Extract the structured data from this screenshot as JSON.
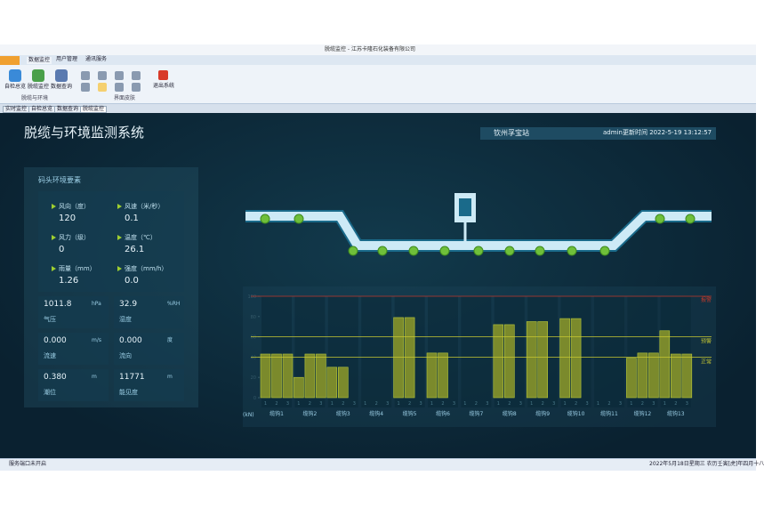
{
  "window": {
    "title": "脱缆监控 - 江苏卡隆石化装备有限公司"
  },
  "ribbon": {
    "tabs": [
      "数据监控",
      "用户管理",
      "通讯服务"
    ],
    "buttons": [
      "自检总览",
      "脱缆监控",
      "数据查询"
    ],
    "groups": [
      "脱缆与环境",
      "界面皮肤"
    ],
    "exit": "退出系统"
  },
  "doc_tabs": [
    "实时监控",
    "自检总览",
    "数据查询",
    "脱缆监控"
  ],
  "header": {
    "title": "脱缆与环境监测系统",
    "station": "钦州孚宝站",
    "user": "admin",
    "update_time": "更新时间 2022-5-19 13:12:57"
  },
  "environment": {
    "title": "码头环境要素",
    "items": [
      {
        "label": "风向（度）",
        "value": "120"
      },
      {
        "label": "风速（米/秒）",
        "value": "0.1"
      },
      {
        "label": "风力（级）",
        "value": "0"
      },
      {
        "label": "温度（℃）",
        "value": "26.1"
      },
      {
        "label": "雨量（mm）",
        "value": "1.26"
      },
      {
        "label": "强度（mm/h）",
        "value": "0.0"
      }
    ],
    "boxes": [
      {
        "value": "1011.8",
        "unit": "hPa",
        "label": "气压"
      },
      {
        "value": "32.9",
        "unit": "%RH",
        "label": "湿度"
      },
      {
        "value": "0.000",
        "unit": "m/s",
        "label": "流速"
      },
      {
        "value": "0.000",
        "unit": "度",
        "label": "流向"
      },
      {
        "value": "0.380",
        "unit": "m",
        "label": "潮位"
      },
      {
        "value": "11771",
        "unit": "m",
        "label": "能见度"
      }
    ]
  },
  "chart_data": {
    "type": "bar",
    "y_label": "(kN)",
    "categories": [
      "缆钩1",
      "缆钩2",
      "缆钩3",
      "缆钩4",
      "缆钩5",
      "缆钩6",
      "缆钩7",
      "缆钩8",
      "缆钩9",
      "缆钩10",
      "缆钩11",
      "缆钩12",
      "缆钩13"
    ],
    "series": [
      {
        "name": "1",
        "color": "#7b8a2c",
        "values": [
          43,
          20,
          30,
          null,
          79,
          44,
          null,
          72,
          75,
          78,
          null,
          39,
          66
        ]
      },
      {
        "name": "2",
        "color": "#7b8a2c",
        "values": [
          43,
          43,
          30,
          null,
          79,
          44,
          null,
          72,
          75,
          78,
          null,
          44,
          43
        ]
      },
      {
        "name": "3",
        "color": "#7b8a2c",
        "values": [
          43,
          43,
          null,
          null,
          null,
          null,
          null,
          null,
          null,
          null,
          null,
          44,
          43
        ]
      }
    ],
    "ylim": [
      0,
      100
    ],
    "yticks": [
      0,
      20,
      40,
      60,
      80,
      100
    ],
    "thresholds": [
      {
        "name": "报警",
        "value": 100,
        "color": "#c0392b"
      },
      {
        "name": "预警",
        "value": 60,
        "color": "#c8c832"
      },
      {
        "name": "正常",
        "value": 40,
        "color": "#c8c832"
      }
    ]
  },
  "status": {
    "left": "服务端口未开启",
    "right": "2022年5月18日星期三 农历壬寅[虎]年四月十八"
  }
}
